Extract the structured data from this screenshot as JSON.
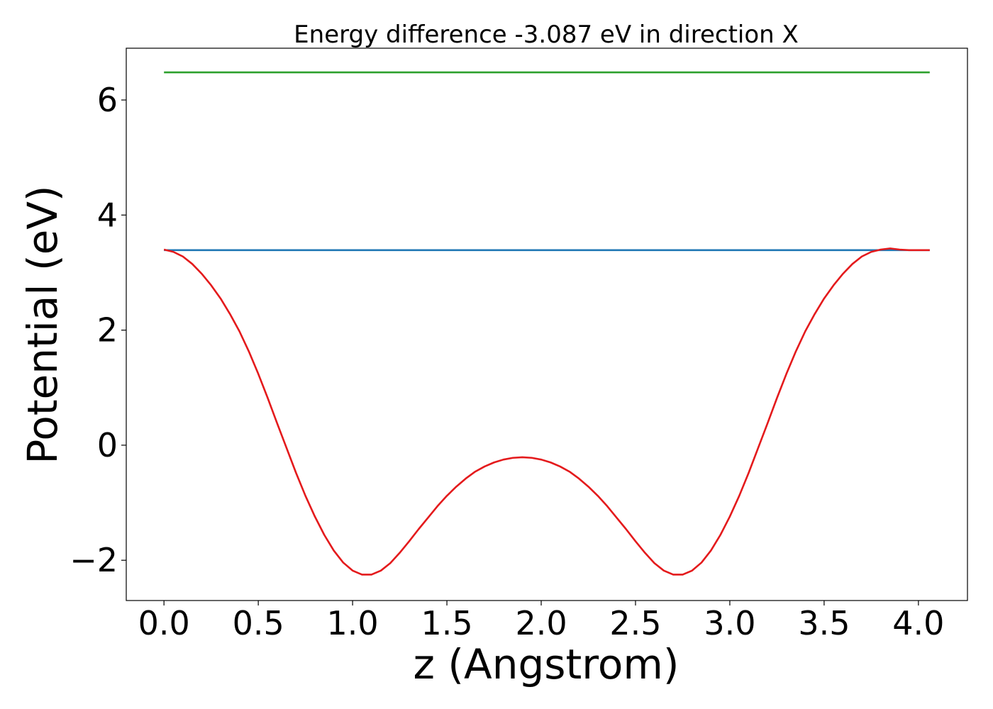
{
  "chart_data": {
    "type": "line",
    "title": "Energy difference -3.087 eV in direction X",
    "xlabel": "z (Angstrom)",
    "ylabel": "Potential (eV)",
    "xlim": [
      -0.2,
      4.26
    ],
    "ylim": [
      -2.7,
      6.9
    ],
    "x_ticks": [
      {
        "value": 0.0,
        "label": "0.0"
      },
      {
        "value": 0.5,
        "label": "0.5"
      },
      {
        "value": 1.0,
        "label": "1.0"
      },
      {
        "value": 1.5,
        "label": "1.5"
      },
      {
        "value": 2.0,
        "label": "2.0"
      },
      {
        "value": 2.5,
        "label": "2.5"
      },
      {
        "value": 3.0,
        "label": "3.0"
      },
      {
        "value": 3.5,
        "label": "3.5"
      },
      {
        "value": 4.0,
        "label": "4.0"
      }
    ],
    "y_ticks": [
      {
        "value": -2,
        "label": "−2"
      },
      {
        "value": 0,
        "label": "0"
      },
      {
        "value": 2,
        "label": "2"
      },
      {
        "value": 4,
        "label": "4"
      },
      {
        "value": 6,
        "label": "6"
      }
    ],
    "grid": false,
    "series": [
      {
        "color": "#2ca02c",
        "x": [
          0.0,
          4.06
        ],
        "y": [
          6.48,
          6.48
        ]
      },
      {
        "color": "#1f77b4",
        "x": [
          0.0,
          4.06
        ],
        "y": [
          3.39,
          3.39
        ]
      },
      {
        "color": "#e41a1c",
        "x": [
          0.0,
          0.05,
          0.1,
          0.15,
          0.2,
          0.25,
          0.3,
          0.35,
          0.4,
          0.45,
          0.5,
          0.55,
          0.6,
          0.65,
          0.7,
          0.75,
          0.8,
          0.85,
          0.9,
          0.95,
          1.0,
          1.05,
          1.1,
          1.15,
          1.2,
          1.25,
          1.3,
          1.35,
          1.4,
          1.45,
          1.5,
          1.55,
          1.6,
          1.65,
          1.7,
          1.75,
          1.8,
          1.85,
          1.9,
          1.95,
          2.0,
          2.05,
          2.1,
          2.15,
          2.2,
          2.25,
          2.3,
          2.35,
          2.4,
          2.45,
          2.5,
          2.55,
          2.6,
          2.65,
          2.7,
          2.75,
          2.8,
          2.85,
          2.9,
          2.95,
          3.0,
          3.05,
          3.1,
          3.15,
          3.2,
          3.25,
          3.3,
          3.35,
          3.4,
          3.45,
          3.5,
          3.55,
          3.6,
          3.65,
          3.7,
          3.75,
          3.8,
          3.85,
          3.9,
          3.95,
          4.0,
          4.06
        ],
        "y": [
          3.4,
          3.36,
          3.28,
          3.15,
          2.98,
          2.78,
          2.55,
          2.28,
          1.98,
          1.63,
          1.24,
          0.82,
          0.38,
          -0.05,
          -0.48,
          -0.88,
          -1.24,
          -1.56,
          -1.83,
          -2.04,
          -2.18,
          -2.25,
          -2.25,
          -2.18,
          -2.05,
          -1.87,
          -1.67,
          -1.46,
          -1.26,
          -1.06,
          -0.88,
          -0.72,
          -0.58,
          -0.46,
          -0.37,
          -0.3,
          -0.25,
          -0.22,
          -0.21,
          -0.22,
          -0.25,
          -0.3,
          -0.37,
          -0.46,
          -0.58,
          -0.72,
          -0.88,
          -1.06,
          -1.26,
          -1.46,
          -1.67,
          -1.87,
          -2.05,
          -2.18,
          -2.25,
          -2.25,
          -2.18,
          -2.04,
          -1.83,
          -1.56,
          -1.24,
          -0.88,
          -0.48,
          -0.05,
          0.38,
          0.82,
          1.24,
          1.63,
          1.98,
          2.28,
          2.55,
          2.78,
          2.98,
          3.15,
          3.28,
          3.36,
          3.4,
          3.42,
          3.4,
          3.39,
          3.39,
          3.39
        ]
      }
    ]
  }
}
